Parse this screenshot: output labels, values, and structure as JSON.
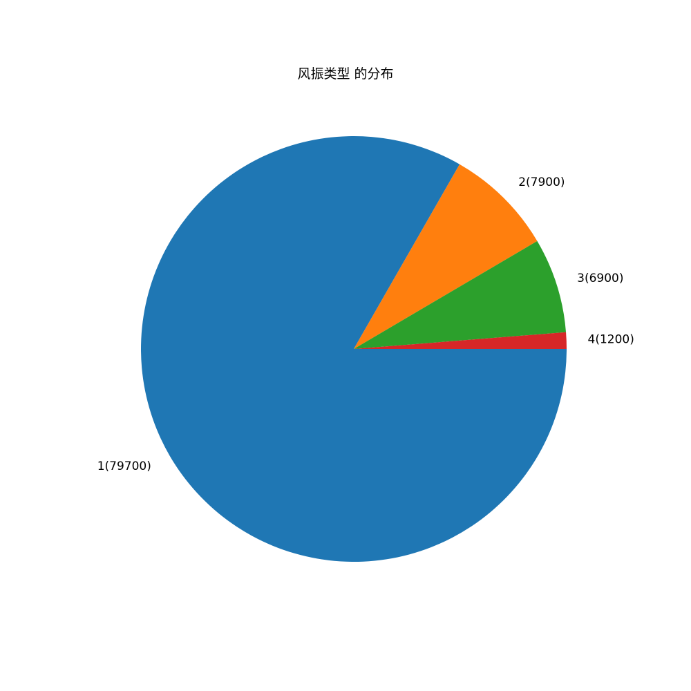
{
  "chart_data": {
    "type": "pie",
    "title": "风振类型 的分布",
    "start_angle": 0,
    "direction": "clockwise",
    "slices": [
      {
        "category": "1",
        "value": 79700,
        "label": "1(79700)",
        "color": "#1f77b4"
      },
      {
        "category": "2",
        "value": 7900,
        "label": "2(7900)",
        "color": "#ff7f0e"
      },
      {
        "category": "3",
        "value": 6900,
        "label": "3(6900)",
        "color": "#2ca02c"
      },
      {
        "category": "4",
        "value": 1200,
        "label": "4(1200)",
        "color": "#d62728"
      }
    ]
  }
}
